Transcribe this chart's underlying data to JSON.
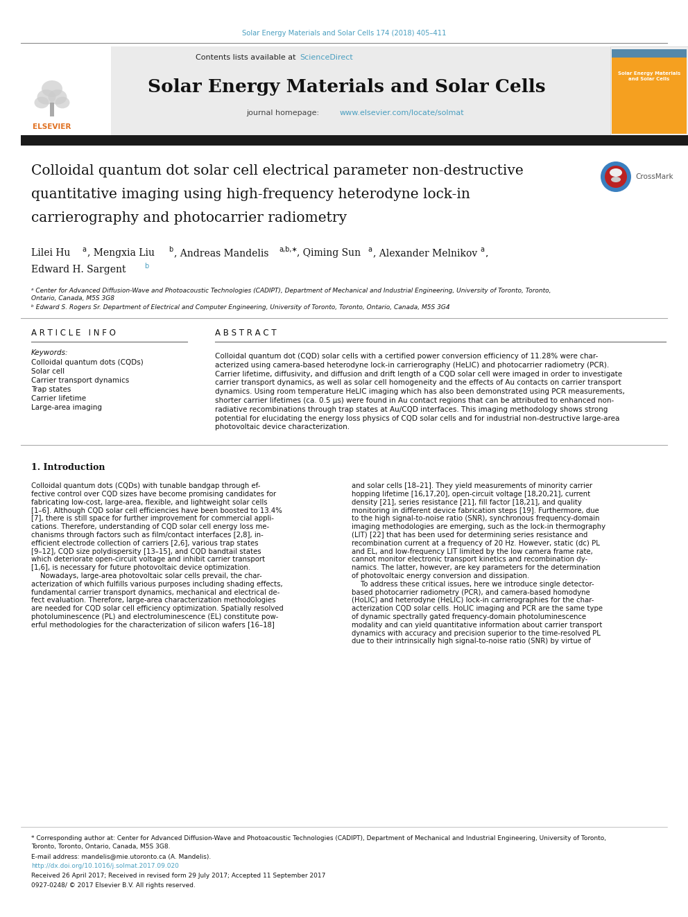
{
  "journal_ref": "Solar Energy Materials and Solar Cells 174 (2018) 405–411",
  "journal_ref_color": "#4a9fc0",
  "journal_title": "Solar Energy Materials and Solar Cells",
  "journal_homepage_url": "www.elsevier.com/locate/solmat",
  "keywords": [
    "Colloidal quantum dots (CQDs)",
    "Solar cell",
    "Carrier transport dynamics",
    "Trap states",
    "Carrier lifetime",
    "Large-area imaging"
  ],
  "abstract_text": "Colloidal quantum dot (CQD) solar cells with a certified power conversion efficiency of 11.28% were char-\nacterized using camera-based heterodyne lock-in carrierography (HeLIC) and photocarrier radiometry (PCR).\nCarrier lifetime, diffusivity, and diffusion and drift length of a CQD solar cell were imaged in order to investigate\ncarrier transport dynamics, as well as solar cell homogeneity and the effects of Au contacts on carrier transport\ndynamics. Using room temperature HeLIC imaging which has also been demonstrated using PCR measurements,\nshorter carrier lifetimes (ca. 0.5 μs) were found in Au contact regions that can be attributed to enhanced non-\nradiative recombinations through trap states at Au/CQD interfaces. This imaging methodology shows strong\npotential for elucidating the energy loss physics of CQD solar cells and for industrial non-destructive large-area\nphotovoltaic device characterization.",
  "intro_col1": [
    "Colloidal quantum dots (CQDs) with tunable bandgap through ef-",
    "fective control over CQD sizes have become promising candidates for",
    "fabricating low-cost, large-area, flexible, and lightweight solar cells",
    "[1–6]. Although CQD solar cell efficiencies have been boosted to 13.4%",
    "[7], there is still space for further improvement for commercial appli-",
    "cations. Therefore, understanding of CQD solar cell energy loss me-",
    "chanisms through factors such as film/contact interfaces [2,8], in-",
    "efficient electrode collection of carriers [2,6], various trap states",
    "[9–12], CQD size polydispersity [13–15], and CQD bandtail states",
    "which deteriorate open-circuit voltage and inhibit carrier transport",
    "[1,6], is necessary for future photovoltaic device optimization.",
    "    Nowadays, large-area photovoltaic solar cells prevail, the char-",
    "acterization of which fulfills various purposes including shading effects,",
    "fundamental carrier transport dynamics, mechanical and electrical de-",
    "fect evaluation. Therefore, large-area characterization methodologies",
    "are needed for CQD solar cell efficiency optimization. Spatially resolved",
    "photoluminescence (PL) and electroluminescence (EL) constitute pow-",
    "erful methodologies for the characterization of silicon wafers [16–18]"
  ],
  "intro_col2": [
    "and solar cells [18–21]. They yield measurements of minority carrier",
    "hopping lifetime [16,17,20], open-circuit voltage [18,20,21], current",
    "density [21], series resistance [21], fill factor [18,21], and quality",
    "monitoring in different device fabrication steps [19]. Furthermore, due",
    "to the high signal-to-noise ratio (SNR), synchronous frequency-domain",
    "imaging methodologies are emerging, such as the lock-in thermography",
    "(LIT) [22] that has been used for determining series resistance and",
    "recombination current at a frequency of 20 Hz. However, static (dc) PL",
    "and EL, and low-frequency LIT limited by the low camera frame rate,",
    "cannot monitor electronic transport kinetics and recombination dy-",
    "namics. The latter, however, are key parameters for the determination",
    "of photovoltaic energy conversion and dissipation.",
    "    To address these critical issues, here we introduce single detector-",
    "based photocarrier radiometry (PCR), and camera-based homodyne",
    "(HoLIC) and heterodyne (HeLIC) lock-in carrierographies for the char-",
    "acterization CQD solar cells. HoLIC imaging and PCR are the same type",
    "of dynamic spectrally gated frequency-domain photoluminescence",
    "modality and can yield quantitative information about carrier transport",
    "dynamics with accuracy and precision superior to the time-resolved PL",
    "due to their intrinsically high signal-to-noise ratio (SNR) by virtue of"
  ],
  "footnote_star": "* Corresponding author at: Center for Advanced Diffusion-Wave and Photoacoustic Technologies (CADIPT), Department of Mechanical and Industrial Engineering, University of Toronto,",
  "footnote_star2": "Toronto, Toronto, Ontario, Canada, M5S 3G8.",
  "footnote_email": "E-mail address: mandelis@mie.utoronto.ca (A. Mandelis).",
  "footnote_doi": "http://dx.doi.org/10.1016/j.solmat.2017.09.020",
  "footnote_received": "Received 26 April 2017; Received in revised form 29 July 2017; Accepted 11 September 2017",
  "footnote_issn": "0927-0248/ © 2017 Elsevier B.V. All rights reserved.",
  "bg_color": "#ffffff",
  "link_color": "#4a9fc0"
}
